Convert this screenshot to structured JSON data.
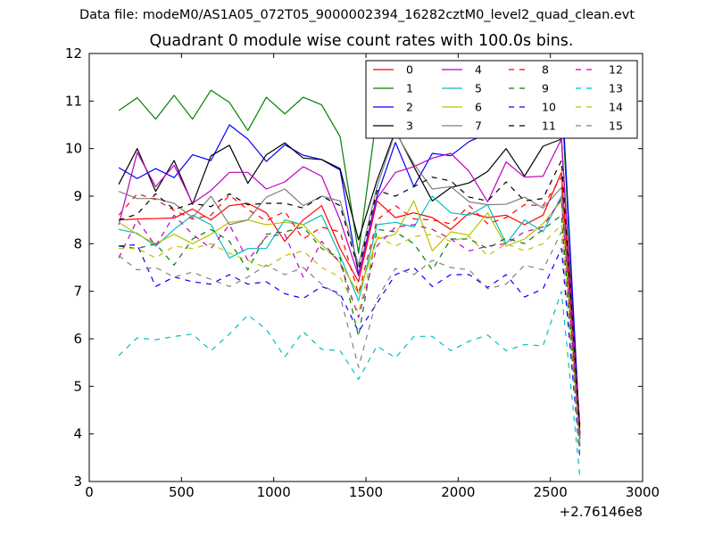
{
  "chart_data": {
    "type": "line",
    "suptitle": "Data file: modeM0/AS1A05_072T05_9000002394_16282cztM0_level2_quad_clean.evt",
    "title": "Quadrant 0 module wise count rates with 100.0s bins.",
    "xlabel": "",
    "ylabel": "",
    "xlim": [
      0,
      3000
    ],
    "ylim": [
      3,
      12
    ],
    "xticks": [
      "0",
      "500",
      "1000",
      "1500",
      "2000",
      "2500",
      "3000"
    ],
    "yticks": [
      "3",
      "4",
      "5",
      "6",
      "7",
      "8",
      "9",
      "10",
      "11",
      "12"
    ],
    "x_offset_label": "+2.76146e8",
    "legend_position": "top-right",
    "grid": false,
    "x": [
      160,
      260,
      360,
      460,
      560,
      660,
      760,
      860,
      960,
      1060,
      1160,
      1260,
      1360,
      1460,
      1560,
      1660,
      1760,
      1860,
      1960,
      2060,
      2160,
      2260,
      2360,
      2460,
      2560,
      2660
    ],
    "series": [
      {
        "name": "0",
        "color": "#ff0000",
        "dash": "solid",
        "values": [
          8.5,
          8.52,
          8.53,
          8.54,
          8.73,
          8.5,
          8.8,
          8.85,
          8.65,
          8.05,
          8.5,
          8.8,
          7.9,
          7.2,
          8.9,
          8.55,
          8.65,
          8.55,
          8.3,
          8.65,
          8.55,
          8.6,
          8.4,
          8.6,
          9.5,
          4.2
        ]
      },
      {
        "name": "1",
        "color": "#008000",
        "dash": "solid",
        "values": [
          10.8,
          11.07,
          10.62,
          11.12,
          10.62,
          11.23,
          10.97,
          10.38,
          11.08,
          10.73,
          11.08,
          10.92,
          10.25,
          7.8,
          10.75,
          11.2,
          10.82,
          10.73,
          10.92,
          10.55,
          10.88,
          10.95,
          10.62,
          10.73,
          11.12,
          3.9
        ]
      },
      {
        "name": "2",
        "color": "#0000ff",
        "dash": "solid",
        "values": [
          9.6,
          9.37,
          9.58,
          9.39,
          9.87,
          9.75,
          10.5,
          10.2,
          9.73,
          10.08,
          9.86,
          9.77,
          9.55,
          7.35,
          9.0,
          10.13,
          9.2,
          9.9,
          9.85,
          10.15,
          10.32,
          10.25,
          10.33,
          10.75,
          11.38,
          4.0
        ]
      },
      {
        "name": "3",
        "color": "#000000",
        "dash": "solid",
        "values": [
          9.25,
          10.0,
          9.1,
          9.75,
          8.83,
          9.85,
          10.07,
          9.27,
          9.87,
          10.12,
          9.8,
          9.77,
          9.58,
          8.08,
          9.33,
          10.38,
          9.62,
          8.9,
          9.18,
          9.28,
          9.52,
          10.0,
          9.42,
          10.05,
          10.2,
          4.0
        ]
      },
      {
        "name": "4",
        "color": "#bf00bf",
        "dash": "solid",
        "values": [
          8.4,
          9.92,
          9.2,
          9.65,
          8.85,
          9.12,
          9.5,
          9.5,
          9.15,
          9.3,
          9.62,
          9.42,
          8.5,
          7.32,
          8.95,
          9.5,
          9.62,
          9.8,
          9.9,
          9.52,
          8.88,
          9.72,
          9.4,
          9.42,
          10.2,
          3.95
        ]
      },
      {
        "name": "5",
        "color": "#00bfbf",
        "dash": "solid",
        "values": [
          8.3,
          8.22,
          7.95,
          8.3,
          8.6,
          8.4,
          7.7,
          7.9,
          7.9,
          8.5,
          8.4,
          8.6,
          7.75,
          6.8,
          8.4,
          8.45,
          8.35,
          9.0,
          8.65,
          8.6,
          8.82,
          8.0,
          8.5,
          8.25,
          9.0,
          3.85
        ]
      },
      {
        "name": "6",
        "color": "#bfbf00",
        "dash": "solid",
        "values": [
          8.45,
          8.2,
          8.0,
          8.2,
          8.0,
          8.2,
          8.45,
          8.5,
          8.4,
          8.45,
          8.4,
          7.98,
          7.6,
          6.95,
          8.1,
          8.2,
          8.9,
          7.85,
          8.25,
          8.18,
          8.65,
          7.95,
          8.1,
          8.42,
          8.9,
          3.8
        ]
      },
      {
        "name": "7",
        "color": "#808080",
        "dash": "solid",
        "values": [
          9.1,
          8.95,
          8.95,
          8.85,
          8.55,
          9.0,
          8.4,
          8.5,
          8.98,
          9.15,
          8.8,
          9.0,
          8.9,
          7.55,
          9.2,
          10.35,
          9.68,
          9.15,
          9.2,
          8.88,
          8.82,
          8.83,
          8.98,
          8.75,
          9.18,
          3.95
        ]
      },
      {
        "name": "8",
        "color": "#ff0000",
        "dash": "dashed",
        "values": [
          8.6,
          9.05,
          8.93,
          8.7,
          8.52,
          8.6,
          9.02,
          8.72,
          8.48,
          8.68,
          8.1,
          8.35,
          8.25,
          6.95,
          8.5,
          8.8,
          8.52,
          8.5,
          8.42,
          8.8,
          8.42,
          8.55,
          8.82,
          8.8,
          9.4,
          4.0
        ]
      },
      {
        "name": "9",
        "color": "#008000",
        "dash": "dashed",
        "values": [
          7.95,
          7.9,
          8.0,
          7.55,
          8.1,
          8.3,
          8.05,
          7.45,
          8.2,
          8.25,
          8.35,
          7.9,
          7.7,
          6.05,
          8.3,
          8.25,
          8.0,
          7.45,
          8.1,
          8.1,
          7.9,
          8.12,
          8.0,
          8.3,
          8.6,
          3.75
        ]
      },
      {
        "name": "10",
        "color": "#0000ff",
        "dash": "dashed",
        "values": [
          7.95,
          7.98,
          7.1,
          7.3,
          7.2,
          7.15,
          7.35,
          7.15,
          7.2,
          6.95,
          6.85,
          7.1,
          6.95,
          6.15,
          6.75,
          7.35,
          7.5,
          7.1,
          7.35,
          7.35,
          7.08,
          7.35,
          6.88,
          7.05,
          7.9,
          3.5
        ]
      },
      {
        "name": "11",
        "color": "#000000",
        "dash": "dashed",
        "values": [
          8.5,
          8.62,
          9.05,
          8.72,
          8.85,
          8.78,
          9.05,
          8.82,
          8.85,
          8.85,
          8.75,
          9.0,
          8.8,
          7.45,
          9.12,
          9.0,
          9.2,
          9.4,
          9.32,
          8.98,
          8.9,
          9.3,
          8.9,
          8.95,
          9.75,
          4.1
        ]
      },
      {
        "name": "12",
        "color": "#bf00bf",
        "dash": "dashed",
        "values": [
          7.7,
          8.5,
          7.95,
          8.6,
          8.2,
          7.9,
          8.4,
          7.65,
          8.15,
          8.2,
          7.3,
          8.05,
          7.6,
          6.45,
          7.95,
          8.35,
          8.4,
          8.3,
          8.1,
          7.85,
          7.95,
          8.0,
          8.25,
          8.35,
          8.95,
          3.9
        ]
      },
      {
        "name": "13",
        "color": "#00bfbf",
        "dash": "dashed",
        "values": [
          5.65,
          6.02,
          5.98,
          6.05,
          6.1,
          5.75,
          6.1,
          6.5,
          6.2,
          5.62,
          6.15,
          5.78,
          5.75,
          5.15,
          5.85,
          5.6,
          6.05,
          6.05,
          5.75,
          5.95,
          6.08,
          5.75,
          5.88,
          5.85,
          7.0,
          3.1
        ]
      },
      {
        "name": "14",
        "color": "#bfbf00",
        "dash": "dashed",
        "values": [
          7.9,
          7.9,
          7.7,
          7.95,
          7.9,
          8.0,
          7.8,
          7.65,
          7.5,
          7.75,
          7.85,
          7.5,
          7.3,
          6.55,
          8.15,
          7.95,
          8.15,
          8.2,
          8.05,
          8.15,
          7.75,
          8.0,
          7.85,
          8.0,
          8.4,
          3.65
        ]
      },
      {
        "name": "15",
        "color": "#808080",
        "dash": "dashed",
        "values": [
          7.75,
          7.45,
          7.5,
          7.3,
          7.4,
          7.25,
          7.1,
          7.3,
          7.55,
          7.35,
          7.5,
          7.15,
          6.9,
          5.4,
          6.85,
          7.48,
          7.35,
          7.65,
          7.5,
          7.45,
          7.05,
          7.15,
          7.55,
          7.45,
          8.25,
          3.6
        ]
      }
    ]
  }
}
